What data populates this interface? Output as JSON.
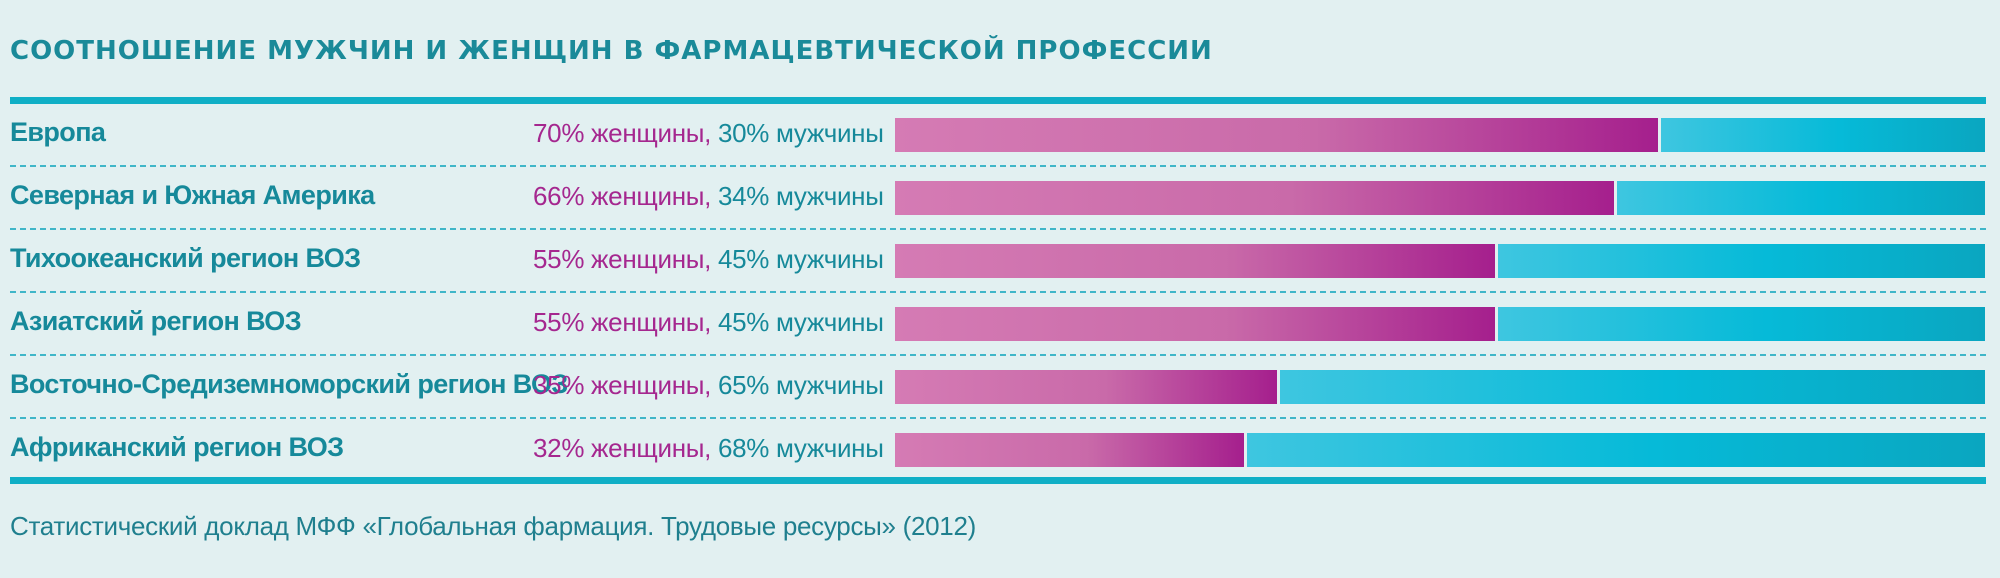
{
  "title": "СООТНОШЕНИЕ МУЖЧИН И ЖЕНЩИН В ФАРМАЦЕВТИЧЕСКОЙ ПРОФЕССИИ",
  "source": "Статистический доклад МФФ «Глобальная фармация. Трудовые ресурсы» (2012)",
  "colors": {
    "women": "#a5278f",
    "men": "#06bad8",
    "accent": "#16899a",
    "background": "#e2f0f1"
  },
  "chart_data": {
    "type": "bar",
    "stacked": true,
    "orientation": "horizontal",
    "title": "СООТНОШЕНИЕ МУЖЧИН И ЖЕНЩИН В ФАРМАЦЕВТИЧЕСКОЙ ПРОФЕССИИ",
    "categories": [
      "Европа",
      "Северная и Южная Америка",
      "Тихоокеанский регион ВОЗ",
      "Азиатский регион ВОЗ",
      "Восточно-Средиземноморский регион ВОЗ",
      "Африканский регион ВОЗ"
    ],
    "series": [
      {
        "name": "женщины",
        "values": [
          70,
          66,
          55,
          55,
          35,
          32
        ]
      },
      {
        "name": "мужчины",
        "values": [
          30,
          34,
          45,
          45,
          65,
          68
        ]
      }
    ],
    "labels": [
      {
        "women": "70% женщины,",
        "men": " 30% мужчины"
      },
      {
        "women": "66% женщины,",
        "men": " 34% мужчины"
      },
      {
        "women": "55% женщины,",
        "men": " 45% мужчины"
      },
      {
        "women": "55% женщины,",
        "men": " 45% мужчины"
      },
      {
        "women": "35% женщины,",
        "men": " 65% мужчины"
      },
      {
        "women": "32% женщины,",
        "men": " 68% мужчины"
      }
    ],
    "xlim": [
      0,
      100
    ],
    "grid": false,
    "legend": "none"
  }
}
